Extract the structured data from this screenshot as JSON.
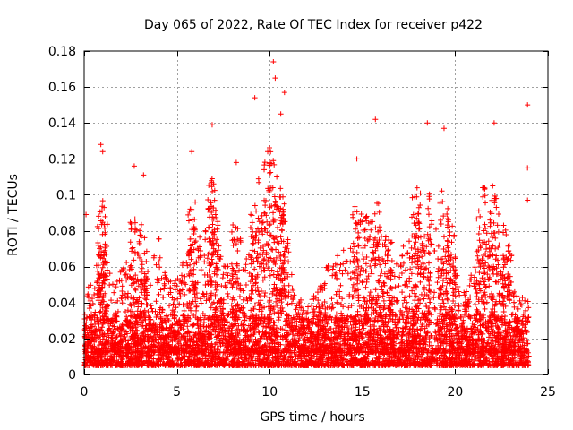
{
  "chart_data": {
    "type": "scatter",
    "title": "Day 065 of 2022, Rate Of TEC Index for receiver p422",
    "xlabel": "GPS time / hours",
    "ylabel": "ROTI / TECUs",
    "xlim": [
      0,
      25
    ],
    "ylim": [
      0,
      0.18
    ],
    "xticks": [
      0,
      5,
      10,
      15,
      20,
      25
    ],
    "xtick_labels": [
      "0",
      "5",
      "10",
      "15",
      "20",
      "25"
    ],
    "yticks": [
      0,
      0.02,
      0.04,
      0.06,
      0.08,
      0.1,
      0.12,
      0.14,
      0.16,
      0.18
    ],
    "ytick_labels": [
      "0",
      "0.02",
      "0.04",
      "0.06",
      "0.08",
      "0.1",
      "0.12",
      "0.14",
      "0.16",
      "0.18"
    ],
    "grid": true,
    "marker": "+",
    "color": "#ff0000",
    "series": [
      {
        "name": "ROTI",
        "summary": "dense band 0.005–0.03 TECU/s over 0–24 h with bursts up to ~0.17",
        "highlights": [
          {
            "x": 0.1,
            "y": 0.089
          },
          {
            "x": 0.9,
            "y": 0.128
          },
          {
            "x": 1.0,
            "y": 0.124
          },
          {
            "x": 2.7,
            "y": 0.116
          },
          {
            "x": 3.2,
            "y": 0.111
          },
          {
            "x": 5.8,
            "y": 0.124
          },
          {
            "x": 6.9,
            "y": 0.139
          },
          {
            "x": 8.2,
            "y": 0.118
          },
          {
            "x": 9.2,
            "y": 0.154
          },
          {
            "x": 10.2,
            "y": 0.174
          },
          {
            "x": 10.3,
            "y": 0.165
          },
          {
            "x": 10.8,
            "y": 0.157
          },
          {
            "x": 10.6,
            "y": 0.145
          },
          {
            "x": 14.7,
            "y": 0.12
          },
          {
            "x": 15.7,
            "y": 0.142
          },
          {
            "x": 18.5,
            "y": 0.14
          },
          {
            "x": 19.4,
            "y": 0.137
          },
          {
            "x": 22.1,
            "y": 0.14
          },
          {
            "x": 23.9,
            "y": 0.15
          },
          {
            "x": 23.9,
            "y": 0.115
          },
          {
            "x": 23.9,
            "y": 0.097
          }
        ],
        "envelope": [
          [
            0,
            0.05
          ],
          [
            0.5,
            0.055
          ],
          [
            1,
            0.08
          ],
          [
            1.5,
            0.05
          ],
          [
            2,
            0.06
          ],
          [
            2.5,
            0.065
          ],
          [
            3,
            0.07
          ],
          [
            3.5,
            0.05
          ],
          [
            4,
            0.08
          ],
          [
            4.5,
            0.06
          ],
          [
            5,
            0.055
          ],
          [
            5.5,
            0.07
          ],
          [
            6,
            0.08
          ],
          [
            6.5,
            0.085
          ],
          [
            7,
            0.09
          ],
          [
            7.5,
            0.06
          ],
          [
            8,
            0.065
          ],
          [
            8.5,
            0.06
          ],
          [
            9,
            0.07
          ],
          [
            9.5,
            0.095
          ],
          [
            10,
            0.11
          ],
          [
            10.5,
            0.09
          ],
          [
            11,
            0.065
          ],
          [
            11.5,
            0.045
          ],
          [
            12,
            0.04
          ],
          [
            12.5,
            0.045
          ],
          [
            13,
            0.06
          ],
          [
            13.5,
            0.065
          ],
          [
            14,
            0.07
          ],
          [
            14.5,
            0.075
          ],
          [
            15,
            0.07
          ],
          [
            15.5,
            0.07
          ],
          [
            16,
            0.08
          ],
          [
            16.5,
            0.06
          ],
          [
            17,
            0.07
          ],
          [
            17.5,
            0.08
          ],
          [
            18,
            0.085
          ],
          [
            18.5,
            0.08
          ],
          [
            19,
            0.085
          ],
          [
            19.5,
            0.08
          ],
          [
            20,
            0.06
          ],
          [
            20.5,
            0.045
          ],
          [
            21,
            0.06
          ],
          [
            21.5,
            0.085
          ],
          [
            22,
            0.09
          ],
          [
            22.5,
            0.07
          ],
          [
            23,
            0.05
          ],
          [
            23.5,
            0.045
          ],
          [
            24,
            0.04
          ]
        ]
      }
    ]
  }
}
